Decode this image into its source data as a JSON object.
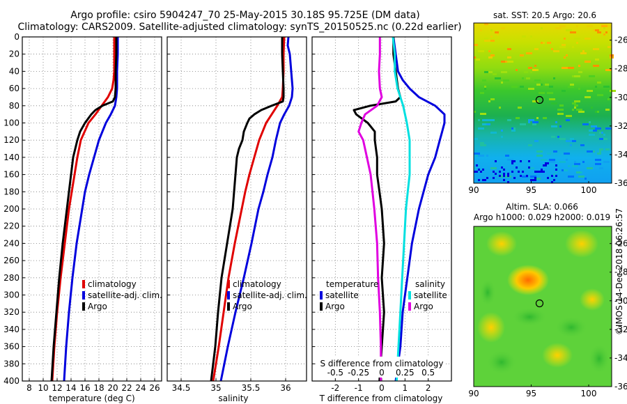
{
  "header": {
    "line1": "Argo profile: csiro 5904247_70 25-May-2015 30.18S 95.725E (DM data)",
    "line2": "Climatology: CARS2009. Satellite-adjusted climatology: synTS_20150525.nc (0.22d earlier)"
  },
  "footer": {
    "credit": "©IMOS 14-Dec-2018 06:26:57"
  },
  "colors": {
    "climatology": "#e00000",
    "satellite": "#0000dd",
    "argo": "#000000",
    "salinity_satellite": "#00e0e0",
    "salinity_argo": "#e000e0"
  },
  "chart_data": [
    {
      "id": "temperature",
      "type": "line",
      "xlabel": "temperature (deg C)",
      "ylabel": "",
      "xlim": [
        7,
        27
      ],
      "ylim": [
        0,
        400
      ],
      "y_inverted": true,
      "xticks": [
        8,
        10,
        12,
        14,
        16,
        18,
        20,
        22,
        24,
        26
      ],
      "yticks": [
        0,
        20,
        40,
        60,
        80,
        100,
        120,
        140,
        160,
        180,
        200,
        220,
        240,
        260,
        280,
        300,
        320,
        340,
        360,
        380,
        400
      ],
      "grid": true,
      "legend": {
        "position": "lower-right",
        "entries": [
          "climatology",
          "satellite-adj. clim.",
          "Argo"
        ]
      },
      "series": [
        {
          "name": "climatology",
          "color": "#e00000",
          "y": [
            0,
            20,
            40,
            50,
            60,
            70,
            80,
            90,
            100,
            120,
            140,
            160,
            180,
            200,
            240,
            280,
            320,
            360,
            400
          ],
          "x": [
            20.2,
            20.2,
            20.2,
            20.1,
            19.9,
            19.3,
            18.4,
            17.5,
            16.5,
            15.4,
            14.9,
            14.5,
            14.1,
            13.7,
            13.1,
            12.5,
            12.0,
            11.6,
            11.3
          ]
        },
        {
          "name": "satellite-adj. clim.",
          "color": "#0000dd",
          "y": [
            0,
            20,
            40,
            60,
            70,
            80,
            90,
            100,
            120,
            140,
            160,
            180,
            200,
            240,
            280,
            320,
            360,
            400
          ],
          "x": [
            20.7,
            20.7,
            20.6,
            20.6,
            20.5,
            20.3,
            19.7,
            19.0,
            18.0,
            17.3,
            16.6,
            16.0,
            15.6,
            14.8,
            14.2,
            13.7,
            13.3,
            13.0
          ]
        },
        {
          "name": "Argo",
          "color": "#000000",
          "y": [
            0,
            20,
            40,
            60,
            70,
            75,
            80,
            85,
            90,
            100,
            110,
            120,
            130,
            140,
            160,
            180,
            200,
            240,
            280,
            320,
            360,
            400
          ],
          "x": [
            20.5,
            20.5,
            20.4,
            20.4,
            20.3,
            20.0,
            18.5,
            17.5,
            16.9,
            16.0,
            15.3,
            14.9,
            14.6,
            14.3,
            14.0,
            13.7,
            13.4,
            12.8,
            12.3,
            11.9,
            11.5,
            11.2
          ]
        }
      ]
    },
    {
      "id": "salinity",
      "type": "line",
      "xlabel": "salinity",
      "ylabel": "",
      "xlim": [
        34.3,
        36.3
      ],
      "ylim": [
        0,
        400
      ],
      "y_inverted": true,
      "xticks": [
        34.5,
        35,
        35.5,
        36
      ],
      "xticklabels": [
        "34.5",
        "35",
        "35.5",
        "36"
      ],
      "grid": true,
      "legend": {
        "position": "lower-right",
        "entries": [
          "climatology",
          "satellite-adj. clim.",
          "Argo"
        ]
      },
      "series": [
        {
          "name": "climatology",
          "color": "#e00000",
          "y": [
            0,
            20,
            40,
            60,
            70,
            80,
            90,
            100,
            120,
            140,
            160,
            180,
            200,
            240,
            280,
            320,
            360,
            400
          ],
          "x": [
            35.98,
            35.97,
            35.97,
            35.96,
            35.95,
            35.88,
            35.8,
            35.72,
            35.62,
            35.55,
            35.48,
            35.42,
            35.37,
            35.27,
            35.18,
            35.11,
            35.04,
            34.96
          ]
        },
        {
          "name": "satellite-adj. clim.",
          "color": "#0000dd",
          "y": [
            0,
            10,
            20,
            40,
            60,
            70,
            80,
            90,
            100,
            120,
            140,
            160,
            180,
            200,
            240,
            280,
            320,
            360,
            400
          ],
          "x": [
            36.04,
            36.03,
            36.06,
            36.08,
            36.1,
            36.09,
            36.05,
            35.98,
            35.92,
            35.86,
            35.81,
            35.74,
            35.68,
            35.61,
            35.51,
            35.4,
            35.28,
            35.17,
            35.07
          ]
        },
        {
          "name": "Argo",
          "color": "#000000",
          "y": [
            0,
            20,
            40,
            60,
            70,
            75,
            80,
            85,
            90,
            95,
            100,
            110,
            120,
            130,
            140,
            160,
            180,
            200,
            240,
            280,
            320,
            360,
            400
          ],
          "x": [
            35.95,
            35.95,
            35.96,
            35.97,
            35.97,
            35.96,
            35.8,
            35.65,
            35.55,
            35.48,
            35.45,
            35.4,
            35.38,
            35.33,
            35.3,
            35.28,
            35.26,
            35.24,
            35.16,
            35.08,
            35.03,
            34.99,
            34.93
          ]
        }
      ]
    },
    {
      "id": "difference",
      "type": "line",
      "xlabel": "T difference from climatology",
      "secondary_xlabel": "S difference from climatology",
      "xlim": [
        -3,
        3
      ],
      "ylim": [
        0,
        400
      ],
      "y_inverted": true,
      "xticks": [
        -2,
        -1,
        0,
        1,
        2
      ],
      "xticklabels": [
        "-2",
        "-1",
        "0",
        "1",
        "2"
      ],
      "secondary_ticks": [
        -0.5,
        -0.25,
        0,
        0.25,
        0.5
      ],
      "secondary_ticklabels": [
        "-0.5",
        "-0.25",
        "0",
        "0.25",
        "0.5"
      ],
      "grid": true,
      "legend": {
        "position": "lower",
        "temperature_title": "temperature",
        "salinity_title": "salinity",
        "entries": [
          "satellite",
          "Argo"
        ]
      },
      "series": [
        {
          "name": "temperature satellite",
          "color": "#0000dd",
          "y": [
            0,
            20,
            40,
            50,
            60,
            70,
            80,
            90,
            100,
            110,
            120,
            140,
            160,
            180,
            200,
            240,
            280,
            320,
            360,
            400
          ],
          "x": [
            0.5,
            0.6,
            0.7,
            0.9,
            1.2,
            1.6,
            2.3,
            2.7,
            2.7,
            2.6,
            2.5,
            2.3,
            2.0,
            1.8,
            1.6,
            1.3,
            1.1,
            0.9,
            0.8,
            0.6
          ]
        },
        {
          "name": "temperature Argo",
          "color": "#000000",
          "y": [
            0,
            20,
            40,
            60,
            70,
            75,
            80,
            85,
            90,
            100,
            110,
            120,
            140,
            160,
            180,
            200,
            240,
            280,
            320,
            360,
            400
          ],
          "x": [
            0.5,
            0.5,
            0.6,
            0.7,
            0.8,
            0.6,
            -0.5,
            -1.2,
            -1.1,
            -0.6,
            -0.3,
            -0.3,
            -0.2,
            -0.2,
            -0.1,
            0.0,
            0.1,
            0.0,
            0.1,
            0.0,
            -0.1
          ]
        },
        {
          "name": "salinity satellite",
          "color": "#00e0e0",
          "y": [
            0,
            20,
            40,
            60,
            80,
            100,
            120,
            140,
            160,
            180,
            200,
            240,
            280,
            320,
            360,
            400
          ],
          "x": [
            0.12,
            0.14,
            0.14,
            0.17,
            0.23,
            0.27,
            0.3,
            0.3,
            0.3,
            0.28,
            0.26,
            0.24,
            0.22,
            0.2,
            0.18,
            0.16
          ]
        },
        {
          "name": "salinity Argo",
          "color": "#e000e0",
          "y": [
            0,
            20,
            40,
            60,
            70,
            80,
            90,
            100,
            110,
            120,
            130,
            140,
            160,
            180,
            200,
            240,
            280,
            320,
            360,
            400
          ],
          "x": [
            -0.02,
            -0.02,
            -0.03,
            -0.02,
            0.0,
            -0.05,
            -0.18,
            -0.22,
            -0.25,
            -0.2,
            -0.18,
            -0.16,
            -0.12,
            -0.1,
            -0.08,
            -0.05,
            -0.04,
            -0.02,
            -0.01,
            -0.01
          ]
        }
      ]
    }
  ],
  "maps": {
    "sst": {
      "title": "sat. SST: 20.5 Argo: 20.6",
      "xticks": [
        90,
        95,
        100
      ],
      "yticks": [
        -26,
        -28,
        -30,
        -32,
        -34,
        -36
      ],
      "xlim": [
        90,
        102
      ],
      "ylim": [
        -36,
        -24.8
      ],
      "marker": {
        "lon": 95.725,
        "lat": -30.18
      }
    },
    "sla": {
      "title_line1": "Altim. SLA: 0.066",
      "title_line2": "Argo h1000: 0.029 h2000: 0.019",
      "xticks": [
        90,
        95,
        100
      ],
      "yticks": [
        -26,
        -28,
        -30,
        -32,
        -34,
        -36
      ],
      "xlim": [
        90,
        102
      ],
      "ylim": [
        -36,
        -24.8
      ],
      "marker": {
        "lon": 95.725,
        "lat": -30.18
      }
    }
  }
}
